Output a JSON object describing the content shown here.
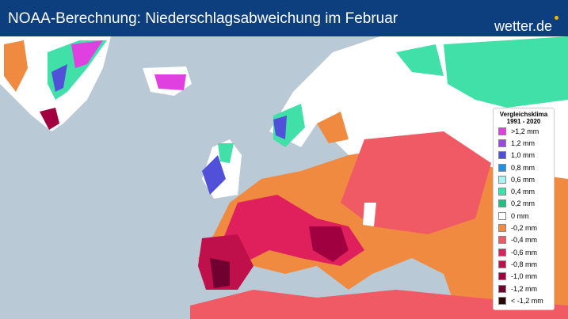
{
  "header": {
    "title": "NOAA-Berechnung: Niederschlagsabweichung im Februar",
    "logo": "wetter.de"
  },
  "legend": {
    "title": [
      "Vergleichsklima",
      "1991 - 2020"
    ],
    "items": [
      {
        "label": ">1,2 mm",
        "color": "#e040e0"
      },
      {
        "label": "1,2 mm",
        "color": "#9a48e0"
      },
      {
        "label": "1,0 mm",
        "color": "#5050d8"
      },
      {
        "label": "0,8 mm",
        "color": "#2090e0"
      },
      {
        "label": "0,6 mm",
        "color": "#a8f4f0"
      },
      {
        "label": "0,4 mm",
        "color": "#40e0a8"
      },
      {
        "label": "0,2 mm",
        "color": "#20c080"
      },
      {
        "label": "0 mm",
        "color": "#ffffff"
      },
      {
        "label": "-0,2 mm",
        "color": "#f08a40"
      },
      {
        "label": "-0,4 mm",
        "color": "#f05a64"
      },
      {
        "label": "-0,6 mm",
        "color": "#e0205c"
      },
      {
        "label": "-0,8 mm",
        "color": "#c0104c"
      },
      {
        "label": "-1,0 mm",
        "color": "#a00040"
      },
      {
        "label": "-1,2 mm",
        "color": "#700030"
      },
      {
        "label": "< -1,2 mm",
        "color": "#2a0808"
      }
    ]
  }
}
